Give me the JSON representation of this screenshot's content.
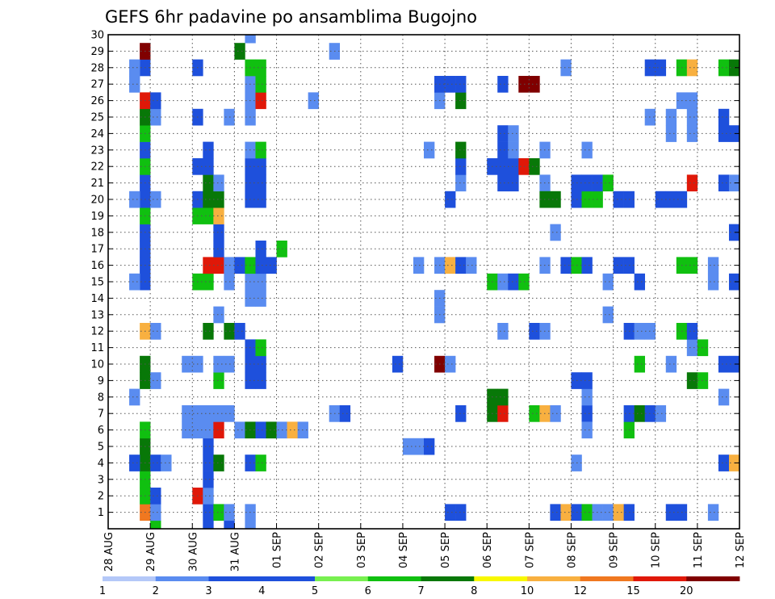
{
  "chart_data": {
    "type": "heatmap",
    "title": "GEFS 6hr padavine po ansamblima Bugojno",
    "xlabel": "",
    "ylabel": "",
    "x_tick_labels": [
      "28 AUG",
      "29 AUG",
      "30 AUG",
      "31 AUG",
      "01 SEP",
      "02 SEP",
      "03 SEP",
      "04 SEP",
      "05 SEP",
      "06 SEP",
      "07 SEP",
      "08 SEP",
      "09 SEP",
      "10 SEP",
      "11 SEP",
      "12 SEP"
    ],
    "y_tick_labels": [
      "1",
      "2",
      "3",
      "4",
      "5",
      "6",
      "7",
      "8",
      "9",
      "10",
      "11",
      "12",
      "13",
      "14",
      "15",
      "16",
      "17",
      "18",
      "19",
      "20",
      "21",
      "22",
      "23",
      "24",
      "25",
      "26",
      "27",
      "28",
      "29",
      "30"
    ],
    "x_range_steps": [
      0,
      60
    ],
    "steps_per_day": 4,
    "y_range": [
      0,
      30
    ],
    "grid": true,
    "legend": "bottom colorbar",
    "levels": [
      "1",
      "2",
      "3",
      "4",
      "5",
      "6",
      "7",
      "8",
      "10",
      "12",
      "15",
      "20"
    ],
    "colors": [
      "#b4c8f8",
      "#5a8cf0",
      "#1e50dc",
      "#1e50dc",
      "#78f050",
      "#10c010",
      "#087808",
      "#f8f800",
      "#f8b040",
      "#f07820",
      "#e01808",
      "#800000"
    ],
    "cells": [
      [
        4,
        1,
        9
      ],
      [
        4,
        2,
        5
      ],
      [
        4,
        3,
        5
      ],
      [
        4,
        4,
        6
      ],
      [
        4,
        5,
        6
      ],
      [
        4,
        6,
        5
      ],
      [
        4,
        9,
        6
      ],
      [
        4,
        10,
        6
      ],
      [
        4,
        12,
        8
      ],
      [
        4,
        15,
        3
      ],
      [
        4,
        16,
        3
      ],
      [
        4,
        17,
        3
      ],
      [
        4,
        18,
        3
      ],
      [
        4,
        19,
        5
      ],
      [
        4,
        20,
        2
      ],
      [
        4,
        21,
        2
      ],
      [
        4,
        22,
        5
      ],
      [
        4,
        23,
        3
      ],
      [
        4,
        24,
        5
      ],
      [
        4,
        25,
        6
      ],
      [
        4,
        26,
        10
      ],
      [
        4,
        28,
        2
      ],
      [
        4,
        29,
        11
      ],
      [
        3,
        4,
        2
      ],
      [
        3,
        8,
        1
      ],
      [
        3,
        15,
        1
      ],
      [
        3,
        27,
        1
      ],
      [
        3,
        28,
        1
      ],
      [
        3,
        20,
        1
      ],
      [
        5,
        0,
        5
      ],
      [
        5,
        1,
        1
      ],
      [
        5,
        2,
        3
      ],
      [
        5,
        4,
        3
      ],
      [
        5,
        9,
        1
      ],
      [
        5,
        12,
        1
      ],
      [
        5,
        20,
        1
      ],
      [
        5,
        25,
        1
      ],
      [
        5,
        26,
        2
      ],
      [
        6,
        4,
        1
      ],
      [
        8,
        6,
        1
      ],
      [
        8,
        7,
        1
      ],
      [
        8,
        10,
        1
      ],
      [
        9,
        2,
        10
      ],
      [
        9,
        6,
        1
      ],
      [
        9,
        7,
        1
      ],
      [
        9,
        10,
        1
      ],
      [
        9,
        15,
        5
      ],
      [
        9,
        19,
        5
      ],
      [
        9,
        20,
        3
      ],
      [
        9,
        22,
        2
      ],
      [
        9,
        25,
        3
      ],
      [
        9,
        28,
        2
      ],
      [
        10,
        0,
        2
      ],
      [
        10,
        1,
        3
      ],
      [
        10,
        2,
        1
      ],
      [
        10,
        3,
        3
      ],
      [
        10,
        4,
        3
      ],
      [
        10,
        5,
        3
      ],
      [
        10,
        6,
        1
      ],
      [
        10,
        7,
        1
      ],
      [
        10,
        12,
        6
      ],
      [
        10,
        15,
        5
      ],
      [
        10,
        16,
        10
      ],
      [
        10,
        19,
        5
      ],
      [
        10,
        20,
        6
      ],
      [
        10,
        21,
        6
      ],
      [
        10,
        22,
        3
      ],
      [
        10,
        23,
        3
      ],
      [
        11,
        1,
        5
      ],
      [
        11,
        4,
        6
      ],
      [
        11,
        6,
        10
      ],
      [
        11,
        7,
        1
      ],
      [
        11,
        9,
        5
      ],
      [
        11,
        10,
        1
      ],
      [
        11,
        13,
        1
      ],
      [
        11,
        16,
        10
      ],
      [
        11,
        17,
        3
      ],
      [
        11,
        18,
        3
      ],
      [
        11,
        19,
        8
      ],
      [
        11,
        20,
        6
      ],
      [
        11,
        21,
        1
      ],
      [
        12,
        0,
        2
      ],
      [
        12,
        1,
        1
      ],
      [
        12,
        7,
        1
      ],
      [
        12,
        10,
        1
      ],
      [
        12,
        12,
        6
      ],
      [
        12,
        15,
        1
      ],
      [
        12,
        16,
        1
      ],
      [
        12,
        25,
        1
      ],
      [
        13,
        6,
        1
      ],
      [
        13,
        12,
        3
      ],
      [
        13,
        16,
        3
      ],
      [
        13,
        29,
        6
      ],
      [
        14,
        0,
        1
      ],
      [
        14,
        1,
        1
      ],
      [
        14,
        4,
        3
      ],
      [
        14,
        6,
        6
      ],
      [
        14,
        9,
        2
      ],
      [
        14,
        10,
        2
      ],
      [
        14,
        11,
        3
      ],
      [
        14,
        14,
        1
      ],
      [
        14,
        15,
        1
      ],
      [
        14,
        16,
        5
      ],
      [
        14,
        20,
        3
      ],
      [
        14,
        21,
        3
      ],
      [
        14,
        22,
        3
      ],
      [
        14,
        23,
        1
      ],
      [
        14,
        25,
        1
      ],
      [
        14,
        26,
        1
      ],
      [
        14,
        27,
        1
      ],
      [
        14,
        28,
        5
      ],
      [
        14,
        30,
        1
      ],
      [
        15,
        4,
        5
      ],
      [
        15,
        6,
        3
      ],
      [
        15,
        9,
        3
      ],
      [
        15,
        10,
        3
      ],
      [
        15,
        11,
        5
      ],
      [
        15,
        14,
        1
      ],
      [
        15,
        15,
        1
      ],
      [
        15,
        16,
        3
      ],
      [
        15,
        17,
        2
      ],
      [
        15,
        20,
        3
      ],
      [
        15,
        21,
        3
      ],
      [
        15,
        22,
        3
      ],
      [
        15,
        23,
        5
      ],
      [
        15,
        26,
        10
      ],
      [
        15,
        27,
        5
      ],
      [
        15,
        28,
        5
      ],
      [
        16,
        6,
        6
      ],
      [
        16,
        16,
        3
      ],
      [
        17,
        6,
        1
      ],
      [
        17,
        17,
        5
      ],
      [
        18,
        6,
        8
      ],
      [
        19,
        6,
        1
      ],
      [
        20,
        26,
        1
      ],
      [
        22,
        7,
        1
      ],
      [
        22,
        29,
        1
      ],
      [
        23,
        7,
        3
      ],
      [
        28,
        10,
        2
      ],
      [
        29,
        5,
        1
      ],
      [
        30,
        5,
        1
      ],
      [
        30,
        16,
        1
      ],
      [
        31,
        5,
        3
      ],
      [
        31,
        23,
        1
      ],
      [
        32,
        10,
        11
      ],
      [
        32,
        13,
        1
      ],
      [
        32,
        14,
        1
      ],
      [
        32,
        16,
        1
      ],
      [
        32,
        26,
        1
      ],
      [
        32,
        27,
        3
      ],
      [
        33,
        1,
        2
      ],
      [
        33,
        10,
        1
      ],
      [
        33,
        16,
        8
      ],
      [
        33,
        20,
        2
      ],
      [
        33,
        27,
        3
      ],
      [
        34,
        1,
        3
      ],
      [
        34,
        7,
        2
      ],
      [
        34,
        16,
        2
      ],
      [
        34,
        21,
        1
      ],
      [
        34,
        22,
        2
      ],
      [
        34,
        23,
        6
      ],
      [
        34,
        26,
        6
      ],
      [
        34,
        27,
        3
      ],
      [
        35,
        16,
        1
      ],
      [
        37,
        8,
        6
      ],
      [
        37,
        7,
        6
      ],
      [
        37,
        15,
        5
      ],
      [
        37,
        22,
        3
      ],
      [
        38,
        7,
        10
      ],
      [
        38,
        8,
        6
      ],
      [
        38,
        12,
        1
      ],
      [
        38,
        15,
        1
      ],
      [
        38,
        21,
        2
      ],
      [
        38,
        22,
        2
      ],
      [
        38,
        23,
        2
      ],
      [
        38,
        24,
        2
      ],
      [
        38,
        27,
        2
      ],
      [
        39,
        15,
        3
      ],
      [
        39,
        21,
        2
      ],
      [
        39,
        22,
        3
      ],
      [
        39,
        23,
        1
      ],
      [
        39,
        24,
        1
      ],
      [
        40,
        15,
        5
      ],
      [
        40,
        22,
        10
      ],
      [
        40,
        27,
        12
      ],
      [
        41,
        7,
        5
      ],
      [
        41,
        12,
        2
      ],
      [
        41,
        22,
        6
      ],
      [
        41,
        27,
        12
      ],
      [
        42,
        7,
        8
      ],
      [
        42,
        12,
        1
      ],
      [
        42,
        21,
        1
      ],
      [
        42,
        16,
        1
      ],
      [
        42,
        20,
        6
      ],
      [
        42,
        23,
        1
      ],
      [
        43,
        1,
        2
      ],
      [
        43,
        7,
        1
      ],
      [
        43,
        18,
        1
      ],
      [
        43,
        20,
        6
      ],
      [
        44,
        1,
        8
      ],
      [
        44,
        16,
        3
      ],
      [
        44,
        28,
        1
      ],
      [
        45,
        1,
        2
      ],
      [
        45,
        4,
        1
      ],
      [
        45,
        9,
        2
      ],
      [
        45,
        16,
        5
      ],
      [
        45,
        20,
        2
      ],
      [
        45,
        21,
        2
      ],
      [
        46,
        1,
        5
      ],
      [
        46,
        7,
        3
      ],
      [
        46,
        8,
        1
      ],
      [
        46,
        9,
        3
      ],
      [
        46,
        6,
        1
      ],
      [
        46,
        16,
        2
      ],
      [
        46,
        20,
        5
      ],
      [
        46,
        21,
        2
      ],
      [
        46,
        23,
        1
      ],
      [
        47,
        1,
        1
      ],
      [
        47,
        20,
        5
      ],
      [
        47,
        21,
        3
      ],
      [
        48,
        1,
        1
      ],
      [
        48,
        13,
        1
      ],
      [
        48,
        15,
        1
      ],
      [
        48,
        21,
        5
      ],
      [
        49,
        1,
        8
      ],
      [
        49,
        16,
        2
      ],
      [
        49,
        20,
        2
      ],
      [
        50,
        1,
        3
      ],
      [
        50,
        6,
        5
      ],
      [
        50,
        7,
        2
      ],
      [
        50,
        12,
        2
      ],
      [
        50,
        16,
        2
      ],
      [
        50,
        20,
        2
      ],
      [
        51,
        7,
        6
      ],
      [
        51,
        10,
        5
      ],
      [
        51,
        15,
        3
      ],
      [
        51,
        12,
        1
      ],
      [
        52,
        7,
        3
      ],
      [
        52,
        12,
        1
      ],
      [
        52,
        28,
        2
      ],
      [
        52,
        25,
        1
      ],
      [
        53,
        7,
        1
      ],
      [
        53,
        20,
        2
      ],
      [
        53,
        28,
        2
      ],
      [
        54,
        1,
        2
      ],
      [
        54,
        10,
        1
      ],
      [
        54,
        20,
        2
      ],
      [
        54,
        24,
        1
      ],
      [
        54,
        25,
        1
      ],
      [
        55,
        1,
        2
      ],
      [
        55,
        12,
        5
      ],
      [
        55,
        16,
        5
      ],
      [
        55,
        20,
        2
      ],
      [
        55,
        26,
        1
      ],
      [
        55,
        28,
        5
      ],
      [
        56,
        9,
        6
      ],
      [
        56,
        11,
        1
      ],
      [
        56,
        12,
        2
      ],
      [
        56,
        16,
        5
      ],
      [
        56,
        21,
        10
      ],
      [
        56,
        24,
        1
      ],
      [
        56,
        25,
        1
      ],
      [
        56,
        26,
        1
      ],
      [
        56,
        28,
        8
      ],
      [
        57,
        9,
        5
      ],
      [
        57,
        11,
        5
      ],
      [
        58,
        1,
        1
      ],
      [
        58,
        15,
        1
      ],
      [
        58,
        16,
        1
      ],
      [
        59,
        4,
        3
      ],
      [
        59,
        8,
        1
      ],
      [
        59,
        28,
        5
      ],
      [
        59,
        10,
        2
      ],
      [
        59,
        24,
        2
      ],
      [
        59,
        25,
        3
      ],
      [
        59,
        21,
        2
      ],
      [
        60,
        4,
        8
      ],
      [
        60,
        10,
        2
      ],
      [
        60,
        15,
        3
      ],
      [
        60,
        18,
        2
      ],
      [
        60,
        21,
        1
      ],
      [
        60,
        24,
        3
      ],
      [
        60,
        28,
        6
      ],
      [
        61,
        6,
        1
      ],
      [
        61,
        9,
        1
      ],
      [
        61,
        10,
        2
      ],
      [
        61,
        12,
        2
      ],
      [
        61,
        17,
        2
      ],
      [
        61,
        25,
        1
      ],
      [
        61,
        28,
        1
      ]
    ]
  }
}
